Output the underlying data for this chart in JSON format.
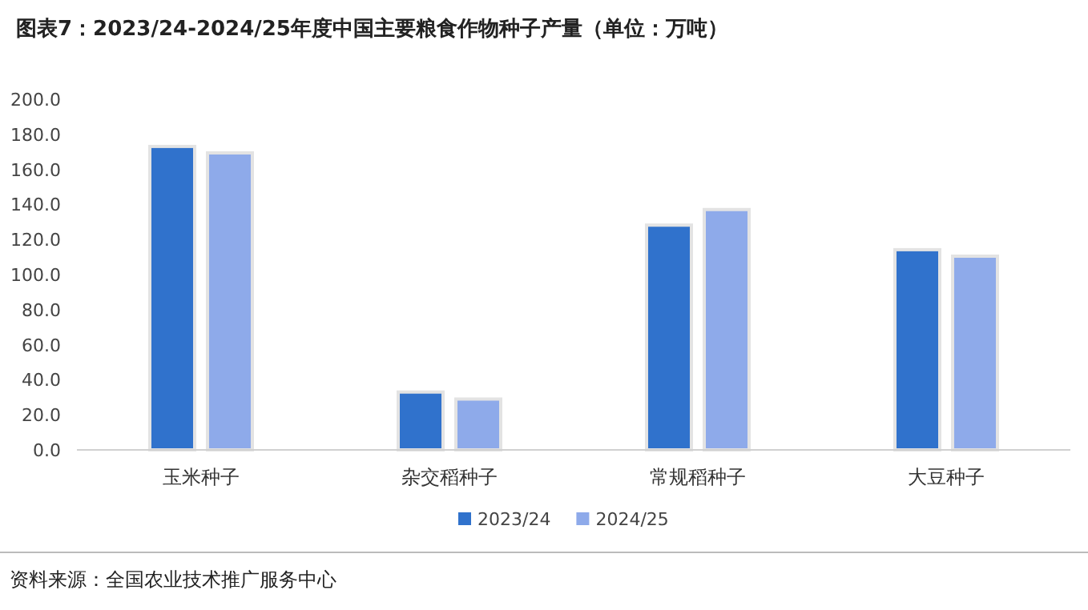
{
  "chart_data": {
    "type": "bar",
    "title": "图表7：2023/24-2024/25年度中国主要粮食作物种子产量（单位：万吨）",
    "categories": [
      "玉米种子",
      "杂交稻种子",
      "常规稻种子",
      "大豆种子"
    ],
    "series": [
      {
        "name": "2023/24",
        "color": "#3072cc",
        "values": [
          173.1,
          33.0,
          128.2,
          114.2
        ]
      },
      {
        "name": "2024/25",
        "color": "#8eaaea",
        "values": [
          169.4,
          29.0,
          137.1,
          110.5
        ]
      }
    ],
    "ylim": [
      0,
      200
    ],
    "yticks": [
      {
        "value": 0,
        "label": "0.0"
      },
      {
        "value": 20,
        "label": "20.0"
      },
      {
        "value": 40,
        "label": "40.0"
      },
      {
        "value": 60,
        "label": "60.0"
      },
      {
        "value": 80,
        "label": "80.0"
      },
      {
        "value": 100,
        "label": "100.0"
      },
      {
        "value": 120,
        "label": "120.0"
      },
      {
        "value": 140,
        "label": "140.0"
      },
      {
        "value": 160,
        "label": "160.0"
      },
      {
        "value": 180,
        "label": "180.0"
      },
      {
        "value": 200,
        "label": "200.0"
      }
    ],
    "grid": false,
    "legend": "bottom",
    "annotations": [
      "资料来源：全国农业技术推广服务中心"
    ]
  }
}
